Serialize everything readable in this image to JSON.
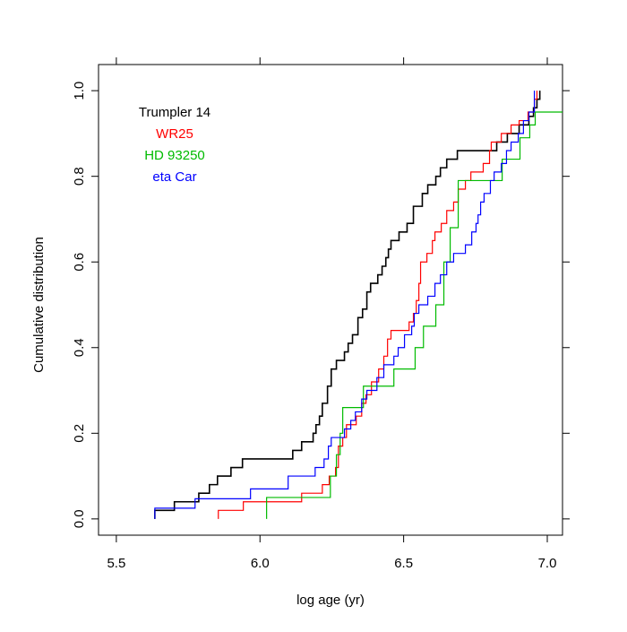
{
  "chart_data": {
    "type": "step",
    "xlabel": "log age (yr)",
    "ylabel": "Cumulative distribution",
    "xlim": [
      5.438,
      7.053
    ],
    "ylim": [
      -0.038,
      1.061
    ],
    "xticks": [
      5.5,
      {
        "value": 6.0,
        "label": "6.0"
      },
      6.5,
      {
        "value": 7.0,
        "label": "7.0"
      }
    ],
    "yticks": [
      {
        "value": 0,
        "label": "0.0"
      },
      0.2,
      0.4,
      0.6,
      0.8,
      {
        "value": 1,
        "label": "1.0"
      }
    ],
    "legend": "top-left",
    "series": [
      {
        "name": "Trumpler 14",
        "color": "#000000",
        "x": [
          5.634,
          5.634,
          5.702,
          5.787,
          5.824,
          5.852,
          5.899,
          5.939,
          6.114,
          6.145,
          6.185,
          6.195,
          6.207,
          6.217,
          6.235,
          6.248,
          6.266,
          6.294,
          6.307,
          6.322,
          6.341,
          6.357,
          6.372,
          6.385,
          6.41,
          6.425,
          6.438,
          6.447,
          6.456,
          6.484,
          6.512,
          6.534,
          6.565,
          6.584,
          6.612,
          6.628,
          6.65,
          6.687,
          6.824,
          6.861,
          6.902,
          6.936,
          6.952,
          6.964,
          6.974
        ],
        "values": [
          0,
          0.02,
          0.04,
          0.06,
          0.08,
          0.1,
          0.12,
          0.14,
          0.16,
          0.18,
          0.2,
          0.22,
          0.24,
          0.27,
          0.31,
          0.35,
          0.37,
          0.39,
          0.41,
          0.43,
          0.47,
          0.49,
          0.53,
          0.55,
          0.57,
          0.59,
          0.61,
          0.63,
          0.65,
          0.67,
          0.69,
          0.73,
          0.76,
          0.78,
          0.8,
          0.82,
          0.84,
          0.86,
          0.88,
          0.9,
          0.92,
          0.94,
          0.96,
          0.98,
          1
        ]
      },
      {
        "name": "WR25",
        "color": "#ff0000",
        "x": [
          5.855,
          5.855,
          5.942,
          6.145,
          6.217,
          6.241,
          6.263,
          6.273,
          6.288,
          6.301,
          6.335,
          6.354,
          6.369,
          6.388,
          6.413,
          6.431,
          6.444,
          6.456,
          6.519,
          6.534,
          6.544,
          6.553,
          6.559,
          6.581,
          6.6,
          6.609,
          6.631,
          6.65,
          6.674,
          6.69,
          6.715,
          6.734,
          6.777,
          6.799,
          6.805,
          6.84,
          6.874,
          6.902,
          6.933,
          6.955,
          6.964
        ],
        "values": [
          0,
          0.02,
          0.04,
          0.06,
          0.08,
          0.1,
          0.12,
          0.17,
          0.19,
          0.22,
          0.24,
          0.27,
          0.29,
          0.32,
          0.35,
          0.38,
          0.42,
          0.44,
          0.46,
          0.48,
          0.51,
          0.55,
          0.6,
          0.62,
          0.65,
          0.67,
          0.69,
          0.72,
          0.74,
          0.77,
          0.79,
          0.81,
          0.83,
          0.86,
          0.88,
          0.9,
          0.92,
          0.93,
          0.95,
          0.98,
          1
        ]
      },
      {
        "name": "HD 93250",
        "color": "#00bb00",
        "x": [
          6.023,
          6.023,
          6.245,
          6.266,
          6.279,
          6.288,
          6.36,
          6.466,
          6.54,
          6.569,
          6.612,
          6.64,
          6.662,
          6.69,
          6.765,
          6.843,
          6.905,
          6.939,
          6.958,
          7.06
        ],
        "values": [
          0,
          0.05,
          0.1,
          0.15,
          0.2,
          0.26,
          0.31,
          0.35,
          0.4,
          0.45,
          0.5,
          0.6,
          0.68,
          0.79,
          0.79,
          0.84,
          0.89,
          0.92,
          0.95,
          0.95
        ]
      },
      {
        "name": "eta Car",
        "color": "#0000ff",
        "x": [
          5.634,
          5.634,
          5.774,
          5.967,
          6.098,
          6.192,
          6.223,
          6.238,
          6.248,
          6.294,
          6.316,
          6.332,
          6.354,
          6.372,
          6.407,
          6.431,
          6.466,
          6.481,
          6.503,
          6.528,
          6.537,
          6.553,
          6.584,
          6.609,
          6.628,
          6.65,
          6.674,
          6.715,
          6.737,
          6.752,
          6.759,
          6.768,
          6.78,
          6.802,
          6.815,
          6.84,
          6.858,
          6.874,
          6.899,
          6.917,
          6.936,
          6.955
        ],
        "values": [
          0,
          0.025,
          0.047,
          0.07,
          0.1,
          0.12,
          0.14,
          0.17,
          0.19,
          0.21,
          0.23,
          0.25,
          0.28,
          0.3,
          0.33,
          0.36,
          0.38,
          0.4,
          0.43,
          0.45,
          0.48,
          0.5,
          0.52,
          0.55,
          0.57,
          0.6,
          0.62,
          0.64,
          0.67,
          0.69,
          0.71,
          0.74,
          0.76,
          0.79,
          0.81,
          0.83,
          0.86,
          0.88,
          0.9,
          0.93,
          0.95,
          1
        ]
      }
    ]
  }
}
